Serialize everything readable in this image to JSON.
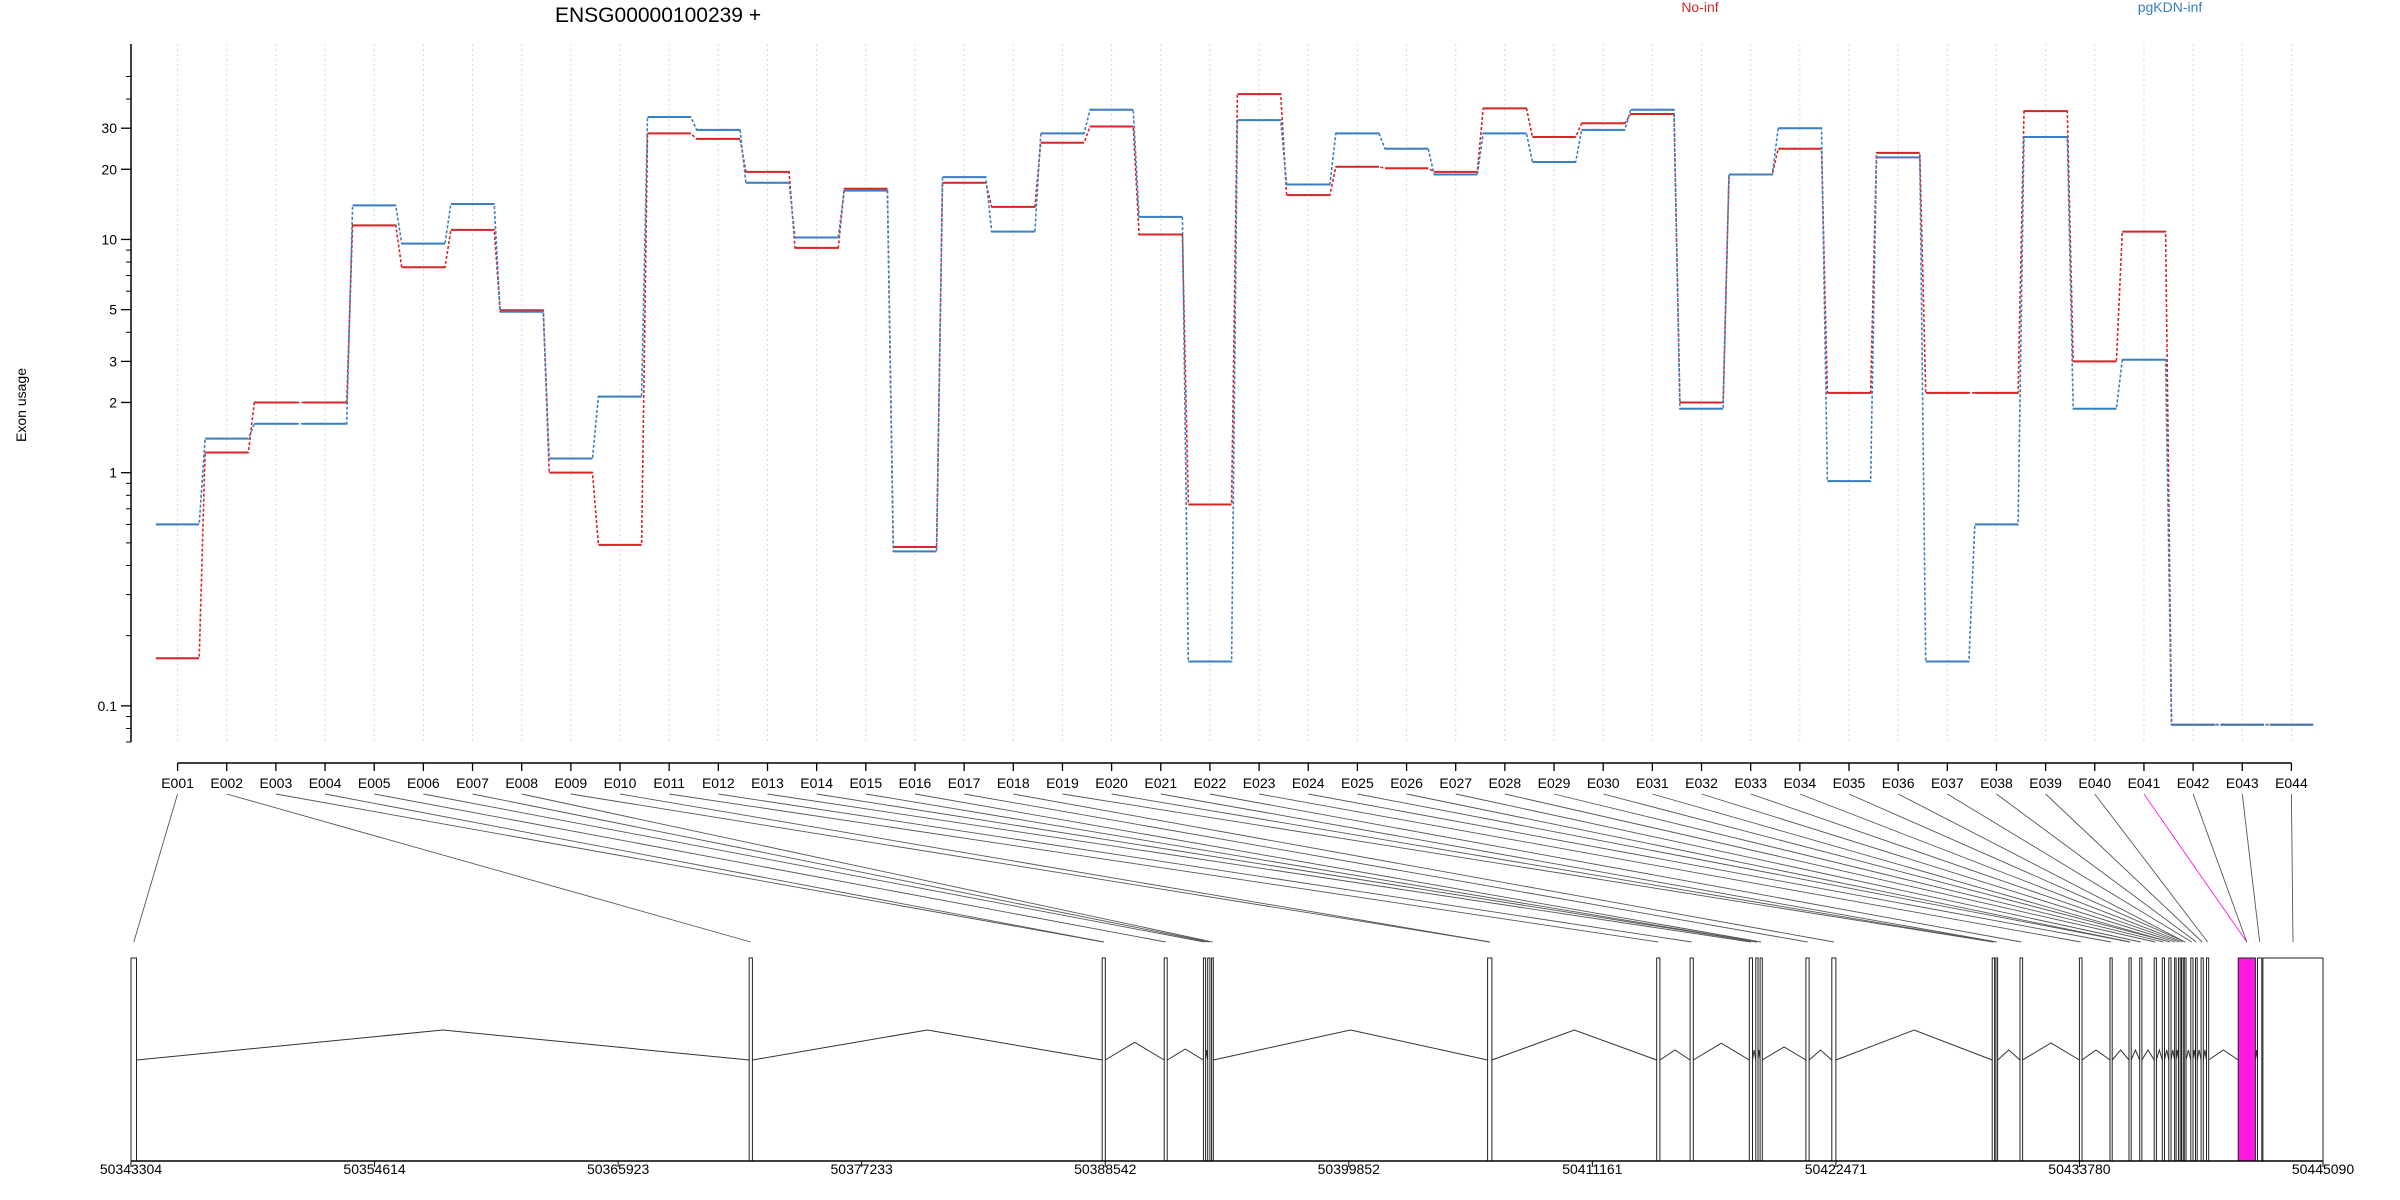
{
  "chart_data": {
    "type": "line",
    "title": "ENSG00000100239 +",
    "ylabel": "Exon usage",
    "xlabel": "",
    "yscale": "log",
    "ylim": [
      0.07,
      60
    ],
    "y_ticks": [
      0.1,
      1,
      2,
      3,
      5,
      10,
      20,
      30
    ],
    "y_tick_labels": [
      "0.1",
      "1",
      "2",
      "3",
      "5",
      "10",
      "20",
      "30"
    ],
    "grid": "vertical-dotted",
    "legend_placement": "top",
    "categories": [
      "E001",
      "E002",
      "E003",
      "E004",
      "E005",
      "E006",
      "E007",
      "E008",
      "E009",
      "E010",
      "E011",
      "E012",
      "E013",
      "E014",
      "E015",
      "E016",
      "E017",
      "E018",
      "E019",
      "E020",
      "E021",
      "E022",
      "E023",
      "E024",
      "E025",
      "E026",
      "E027",
      "E028",
      "E029",
      "E030",
      "E031",
      "E032",
      "E033",
      "E034",
      "E035",
      "E036",
      "E037",
      "E038",
      "E039",
      "E040",
      "E041",
      "E042",
      "E043",
      "E044"
    ],
    "series": [
      {
        "name": "No-inf",
        "color": "#d62728",
        "values": [
          0.16,
          1.22,
          2.0,
          2.0,
          11.5,
          7.6,
          11.0,
          4.97,
          1.0,
          0.49,
          28.5,
          27.0,
          19.5,
          9.2,
          16.5,
          0.48,
          17.5,
          13.8,
          26.0,
          30.5,
          10.5,
          0.73,
          42.0,
          15.5,
          20.5,
          20.2,
          19.5,
          36.5,
          27.5,
          31.5,
          34.5,
          2.0,
          19.0,
          24.5,
          2.2,
          23.5,
          2.2,
          2.2,
          35.5,
          3.0,
          10.8,
          0.083,
          0.083,
          0.083
        ]
      },
      {
        "name": "pgKDN-inf",
        "color": "#3a7fc1",
        "values": [
          0.6,
          1.4,
          1.62,
          1.62,
          14.0,
          9.6,
          14.2,
          4.9,
          1.15,
          2.12,
          33.5,
          29.5,
          17.5,
          10.2,
          16.2,
          0.46,
          18.5,
          10.8,
          28.5,
          36.0,
          12.5,
          0.155,
          32.5,
          17.2,
          28.5,
          24.5,
          19.0,
          28.5,
          21.5,
          29.5,
          36.0,
          1.88,
          19.0,
          30.0,
          0.92,
          22.5,
          0.155,
          0.6,
          27.5,
          1.88,
          3.05,
          0.083,
          0.083,
          0.083
        ]
      }
    ],
    "gene_model": {
      "start": 50343304,
      "end": 50445090,
      "coordinate_labels": [
        "50343304",
        "50354614",
        "50365923",
        "50377233",
        "50388542",
        "50399852",
        "50411161",
        "50422471",
        "50433780",
        "50445090"
      ],
      "highlight_color": "#ff1adf",
      "exons": [
        [
          50343304,
          50343560
        ],
        [
          50372010,
          50372160
        ],
        [
          50388400,
          50388542
        ],
        [
          50391280,
          50391420
        ],
        [
          50393100,
          50393200
        ],
        [
          50393300,
          50393400
        ],
        [
          50393480,
          50393560
        ],
        [
          50406300,
          50406500
        ],
        [
          50414150,
          50414300
        ],
        [
          50415700,
          50415850
        ],
        [
          50418450,
          50418600
        ],
        [
          50418750,
          50418850
        ],
        [
          50418950,
          50419050
        ],
        [
          50421080,
          50421230
        ],
        [
          50422280,
          50422471
        ],
        [
          50429730,
          50429840
        ],
        [
          50429900,
          50429980
        ],
        [
          50431020,
          50431140
        ],
        [
          50433780,
          50433900
        ],
        [
          50435200,
          50435300
        ],
        [
          50436080,
          50436180
        ],
        [
          50436580,
          50436680
        ],
        [
          50437250,
          50437350
        ],
        [
          50437630,
          50437730
        ],
        [
          50437930,
          50438030
        ],
        [
          50438200,
          50438260
        ],
        [
          50438380,
          50438460
        ],
        [
          50438520,
          50438600
        ],
        [
          50438650,
          50438730
        ],
        [
          50438950,
          50439050
        ],
        [
          50439170,
          50439250
        ],
        [
          50439430,
          50439530
        ],
        [
          50439680,
          50439780
        ],
        [
          50441150,
          50441950
        ],
        [
          50442050,
          50442250
        ],
        [
          50442300,
          50445090
        ]
      ]
    }
  }
}
